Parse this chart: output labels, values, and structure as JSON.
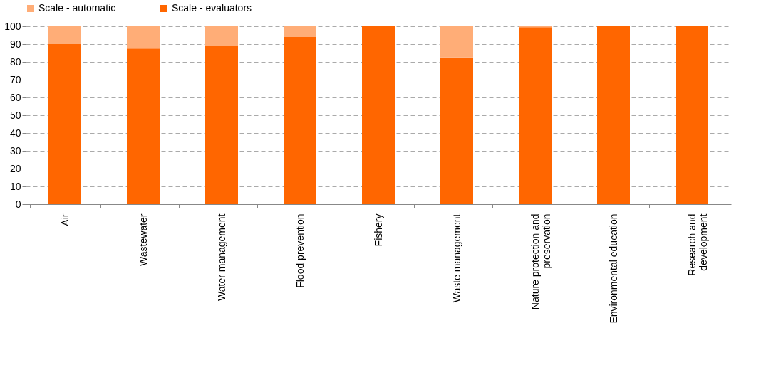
{
  "chart_data": {
    "type": "bar",
    "stacked": true,
    "categories": [
      "Air",
      "Wastewater",
      "Water management",
      "Flood prevention",
      "Fishery",
      "Waste management",
      "Nature protection and preservation",
      "Environmental education",
      "Research and development"
    ],
    "series": [
      {
        "name": "Scale - evaluators",
        "color": "#ff6600",
        "values": [
          90,
          87.5,
          89,
          94,
          100,
          82.5,
          99.5,
          100,
          100
        ]
      },
      {
        "name": "Scale - automatic",
        "color": "#ffad77",
        "values": [
          10,
          12.5,
          11,
          6,
          0,
          17.5,
          0.5,
          0,
          0
        ]
      }
    ],
    "ylim": [
      0,
      100
    ],
    "yticks": [
      0,
      10,
      20,
      30,
      40,
      50,
      60,
      70,
      80,
      90,
      100
    ],
    "grid": "y",
    "legend": "top"
  }
}
